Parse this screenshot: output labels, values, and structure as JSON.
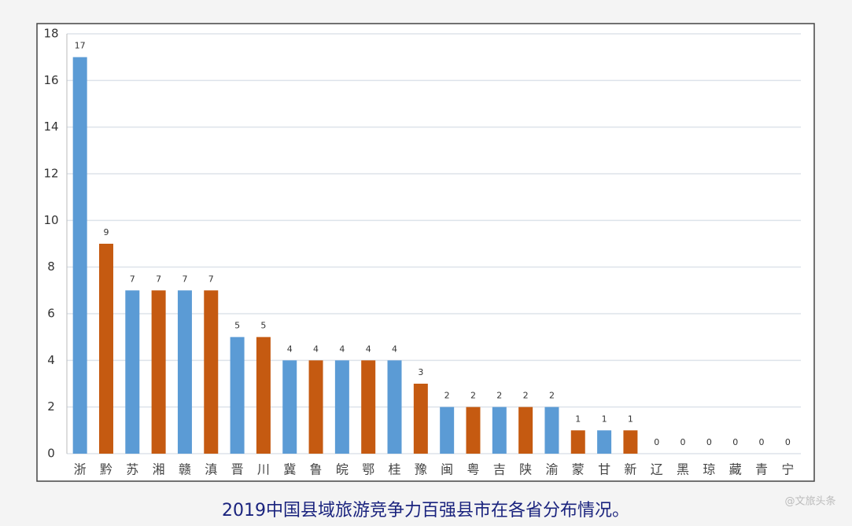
{
  "chart_data": {
    "type": "bar",
    "title": "2019中国县域旅游竞争力百强县市在各省分布情况。",
    "watermark": "@文旅头条",
    "categories": [
      "浙",
      "黔",
      "苏",
      "湘",
      "赣",
      "滇",
      "晋",
      "川",
      "冀",
      "鲁",
      "皖",
      "鄂",
      "桂",
      "豫",
      "闽",
      "粤",
      "吉",
      "陕",
      "渝",
      "蒙",
      "甘",
      "新",
      "辽",
      "黑",
      "琼",
      "藏",
      "青",
      "宁"
    ],
    "values": [
      17,
      9,
      7,
      7,
      7,
      7,
      5,
      5,
      4,
      4,
      4,
      4,
      4,
      3,
      2,
      2,
      2,
      2,
      2,
      1,
      1,
      1,
      0,
      0,
      0,
      0,
      0,
      0
    ],
    "colors": [
      "#5b9bd5",
      "#c55a11"
    ],
    "ylim": [
      0,
      18
    ],
    "yticks": [
      0,
      2,
      4,
      6,
      8,
      10,
      12,
      14,
      16,
      18
    ],
    "grid": true
  }
}
